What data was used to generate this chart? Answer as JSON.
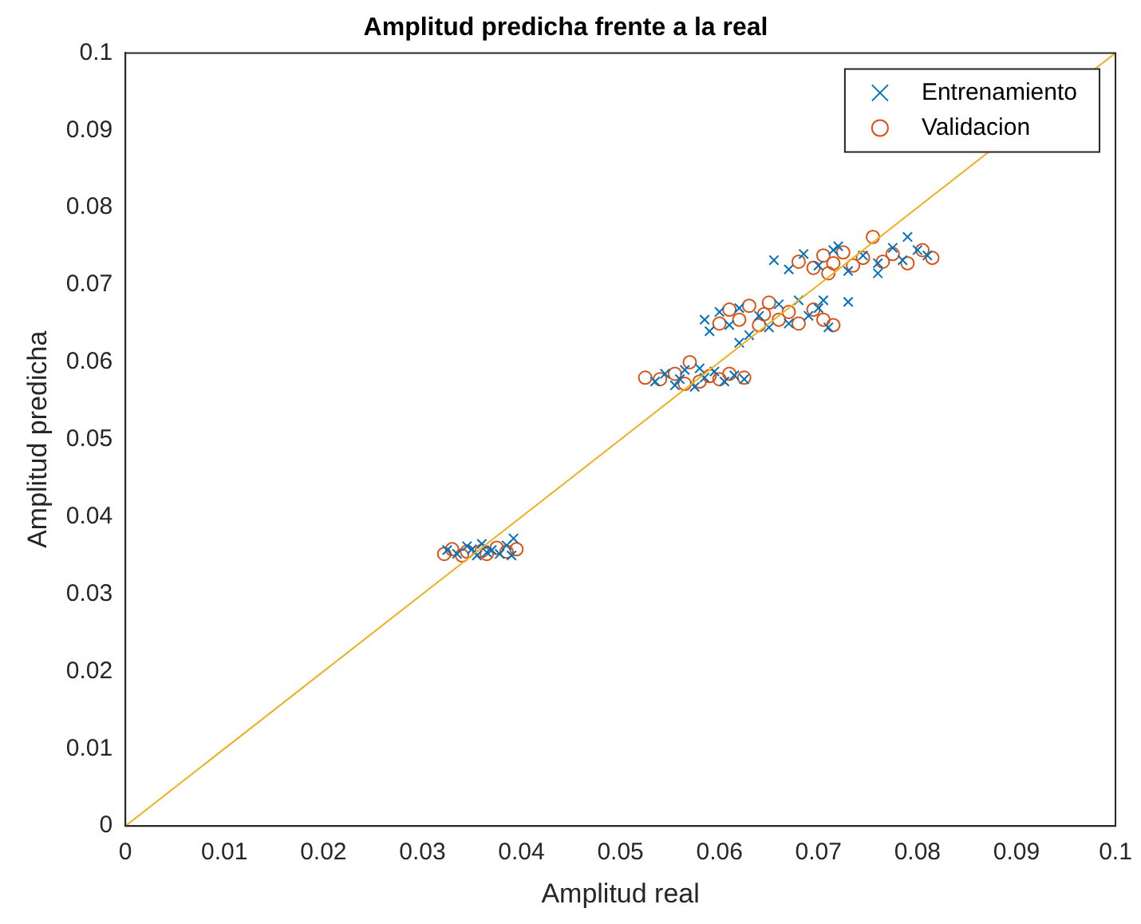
{
  "chart_data": {
    "type": "scatter",
    "title": "Amplitud predicha frente a la real",
    "xlabel": "Amplitud real",
    "ylabel": "Amplitud predicha",
    "xlim": [
      0,
      0.1
    ],
    "ylim": [
      0,
      0.1
    ],
    "xticks": [
      0,
      0.01,
      0.02,
      0.03,
      0.04,
      0.05,
      0.06,
      0.07,
      0.08,
      0.09,
      0.1
    ],
    "yticks": [
      0,
      0.01,
      0.02,
      0.03,
      0.04,
      0.05,
      0.06,
      0.07,
      0.08,
      0.09,
      0.1
    ],
    "grid": false,
    "legend": "top right",
    "series": [
      {
        "name": "Entrenamiento",
        "color": "#0072bd",
        "marker": "cross",
        "x": [
          0.0325,
          0.0335,
          0.0345,
          0.0355,
          0.036,
          0.037,
          0.0378,
          0.0385,
          0.0392,
          0.039,
          0.035,
          0.0365,
          0.0535,
          0.0545,
          0.0555,
          0.0565,
          0.0575,
          0.0585,
          0.0595,
          0.0605,
          0.0615,
          0.0625,
          0.058,
          0.056,
          0.0585,
          0.059,
          0.06,
          0.061,
          0.062,
          0.063,
          0.064,
          0.065,
          0.066,
          0.067,
          0.068,
          0.069,
          0.07,
          0.071,
          0.0705,
          0.062,
          0.0655,
          0.067,
          0.0685,
          0.07,
          0.0715,
          0.073,
          0.0745,
          0.076,
          0.0775,
          0.0785,
          0.079,
          0.08,
          0.081,
          0.073,
          0.072,
          0.076
        ],
        "values": [
          0.0357,
          0.0352,
          0.0362,
          0.035,
          0.0365,
          0.0357,
          0.0352,
          0.0363,
          0.0372,
          0.035,
          0.0358,
          0.0354,
          0.0575,
          0.0585,
          0.057,
          0.059,
          0.0568,
          0.058,
          0.0588,
          0.0575,
          0.0583,
          0.0578,
          0.0592,
          0.0578,
          0.0655,
          0.064,
          0.0665,
          0.0648,
          0.067,
          0.0635,
          0.066,
          0.0645,
          0.0675,
          0.065,
          0.068,
          0.066,
          0.067,
          0.0645,
          0.068,
          0.0625,
          0.0732,
          0.072,
          0.074,
          0.0725,
          0.0745,
          0.0718,
          0.0738,
          0.0728,
          0.0748,
          0.0732,
          0.0762,
          0.0745,
          0.0738,
          0.0678,
          0.075,
          0.0715
        ]
      },
      {
        "name": "Validacion",
        "color": "#d95319",
        "marker": "circle",
        "x": [
          0.033,
          0.0345,
          0.0322,
          0.0365,
          0.0375,
          0.0385,
          0.0395,
          0.034,
          0.036,
          0.0525,
          0.054,
          0.0555,
          0.057,
          0.058,
          0.059,
          0.06,
          0.061,
          0.0625,
          0.0565,
          0.06,
          0.061,
          0.062,
          0.063,
          0.064,
          0.065,
          0.066,
          0.067,
          0.068,
          0.0695,
          0.0705,
          0.0715,
          0.0645,
          0.068,
          0.0695,
          0.0705,
          0.0715,
          0.0725,
          0.0735,
          0.0745,
          0.0755,
          0.0765,
          0.0775,
          0.079,
          0.0805,
          0.0815,
          0.071
        ],
        "values": [
          0.0358,
          0.0355,
          0.0352,
          0.0352,
          0.036,
          0.0355,
          0.0358,
          0.035,
          0.0356,
          0.058,
          0.0578,
          0.0585,
          0.06,
          0.0575,
          0.0582,
          0.0578,
          0.0585,
          0.058,
          0.0572,
          0.065,
          0.0668,
          0.0655,
          0.0673,
          0.0648,
          0.0677,
          0.0655,
          0.0665,
          0.065,
          0.0668,
          0.0655,
          0.0648,
          0.0662,
          0.073,
          0.0722,
          0.0738,
          0.0728,
          0.0742,
          0.0725,
          0.0735,
          0.0762,
          0.073,
          0.074,
          0.0728,
          0.0745,
          0.0735,
          0.0715
        ]
      },
      {
        "type": "line",
        "color": "#edb120",
        "marker": "none",
        "x": [
          0,
          0.1
        ],
        "values": [
          0,
          0.1
        ]
      }
    ]
  }
}
